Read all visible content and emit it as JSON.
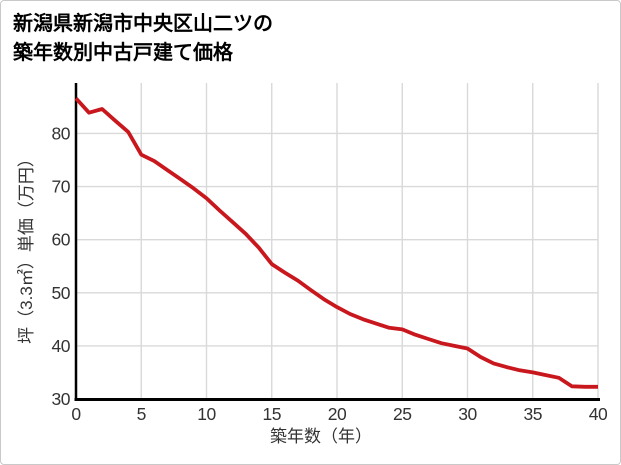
{
  "page": {
    "background_color": "#ffffff",
    "border_color": "#c9c9c9",
    "title_line1": "新潟県新潟市中央区山二ツの",
    "title_line2": "築年数別中古戸建て価格"
  },
  "chart_data": {
    "type": "line",
    "title": "新潟県新潟市中央区山二ツの築年数別中古戸建て価格",
    "xlabel": "築年数（年）",
    "ylabel": "坪（3.3㎡）単価（万円）",
    "x": [
      0,
      1,
      2,
      3,
      4,
      5,
      6,
      7,
      8,
      9,
      10,
      11,
      12,
      13,
      14,
      15,
      16,
      17,
      18,
      19,
      20,
      21,
      22,
      23,
      24,
      25,
      26,
      27,
      28,
      29,
      30,
      31,
      32,
      33,
      34,
      35,
      36,
      37,
      38,
      39,
      40
    ],
    "values": [
      86.6,
      83.9,
      84.6,
      82.4,
      80.3,
      76.0,
      74.8,
      73.1,
      71.4,
      69.7,
      67.8,
      65.5,
      63.3,
      61.1,
      58.5,
      55.4,
      53.8,
      52.3,
      50.5,
      48.8,
      47.3,
      46.0,
      45.0,
      44.2,
      43.4,
      43.1,
      42.1,
      41.3,
      40.5,
      40.0,
      39.5,
      37.9,
      36.7,
      36.0,
      35.4,
      35.0,
      34.5,
      34.0,
      32.4,
      32.3,
      32.3
    ],
    "xticks": [
      0,
      5,
      10,
      15,
      20,
      25,
      30,
      35,
      40
    ],
    "yticks": [
      30,
      40,
      50,
      60,
      70,
      80
    ],
    "xlim": [
      0,
      40
    ],
    "ylim": [
      30,
      89.5
    ],
    "grid": true,
    "legend": false,
    "colors": {
      "line": "#c9171e",
      "axis": "#000000",
      "grid": "#d9d9d9",
      "tick_text": "#333333",
      "title_text": "#000000"
    }
  }
}
